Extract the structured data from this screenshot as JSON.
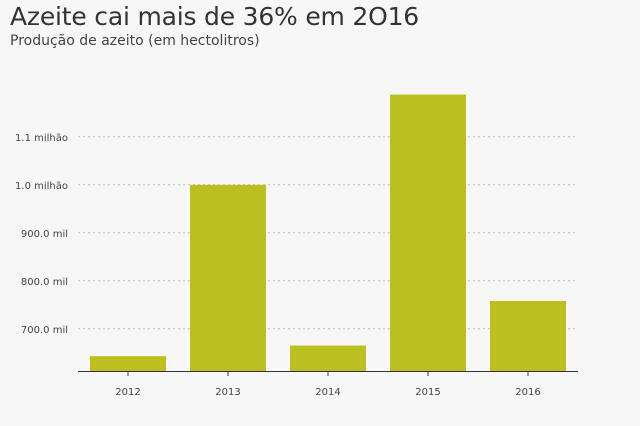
{
  "header": {
    "title": "Azeite cai mais de 36% em 2O16",
    "subtitle": "Produção de azeito (em hectolitros)"
  },
  "colors": {
    "bar": "#bcbf20",
    "grid": "#bbbbbb",
    "axis": "#333333",
    "background": "#f7f7f7"
  },
  "chart_data": {
    "type": "bar",
    "title": "Azeite cai mais de 36% em 2O16",
    "subtitle": "Produção de azeito (em hectolitros)",
    "xlabel": "",
    "ylabel": "",
    "categories": [
      "2012",
      "2013",
      "2014",
      "2015",
      "2016"
    ],
    "values": [
      643000,
      1000000,
      665000,
      1188000,
      758000
    ],
    "ylim": [
      612000,
      1260000
    ],
    "yticks": [
      {
        "value": 700000,
        "label": "700.0 mil"
      },
      {
        "value": 800000,
        "label": "800.0 mil"
      },
      {
        "value": 900000,
        "label": "900.0 mil"
      },
      {
        "value": 1000000,
        "label": "1.0 milhão"
      },
      {
        "value": 1100000,
        "label": "1.1 milhão"
      }
    ],
    "grid": true,
    "legend": "none"
  }
}
